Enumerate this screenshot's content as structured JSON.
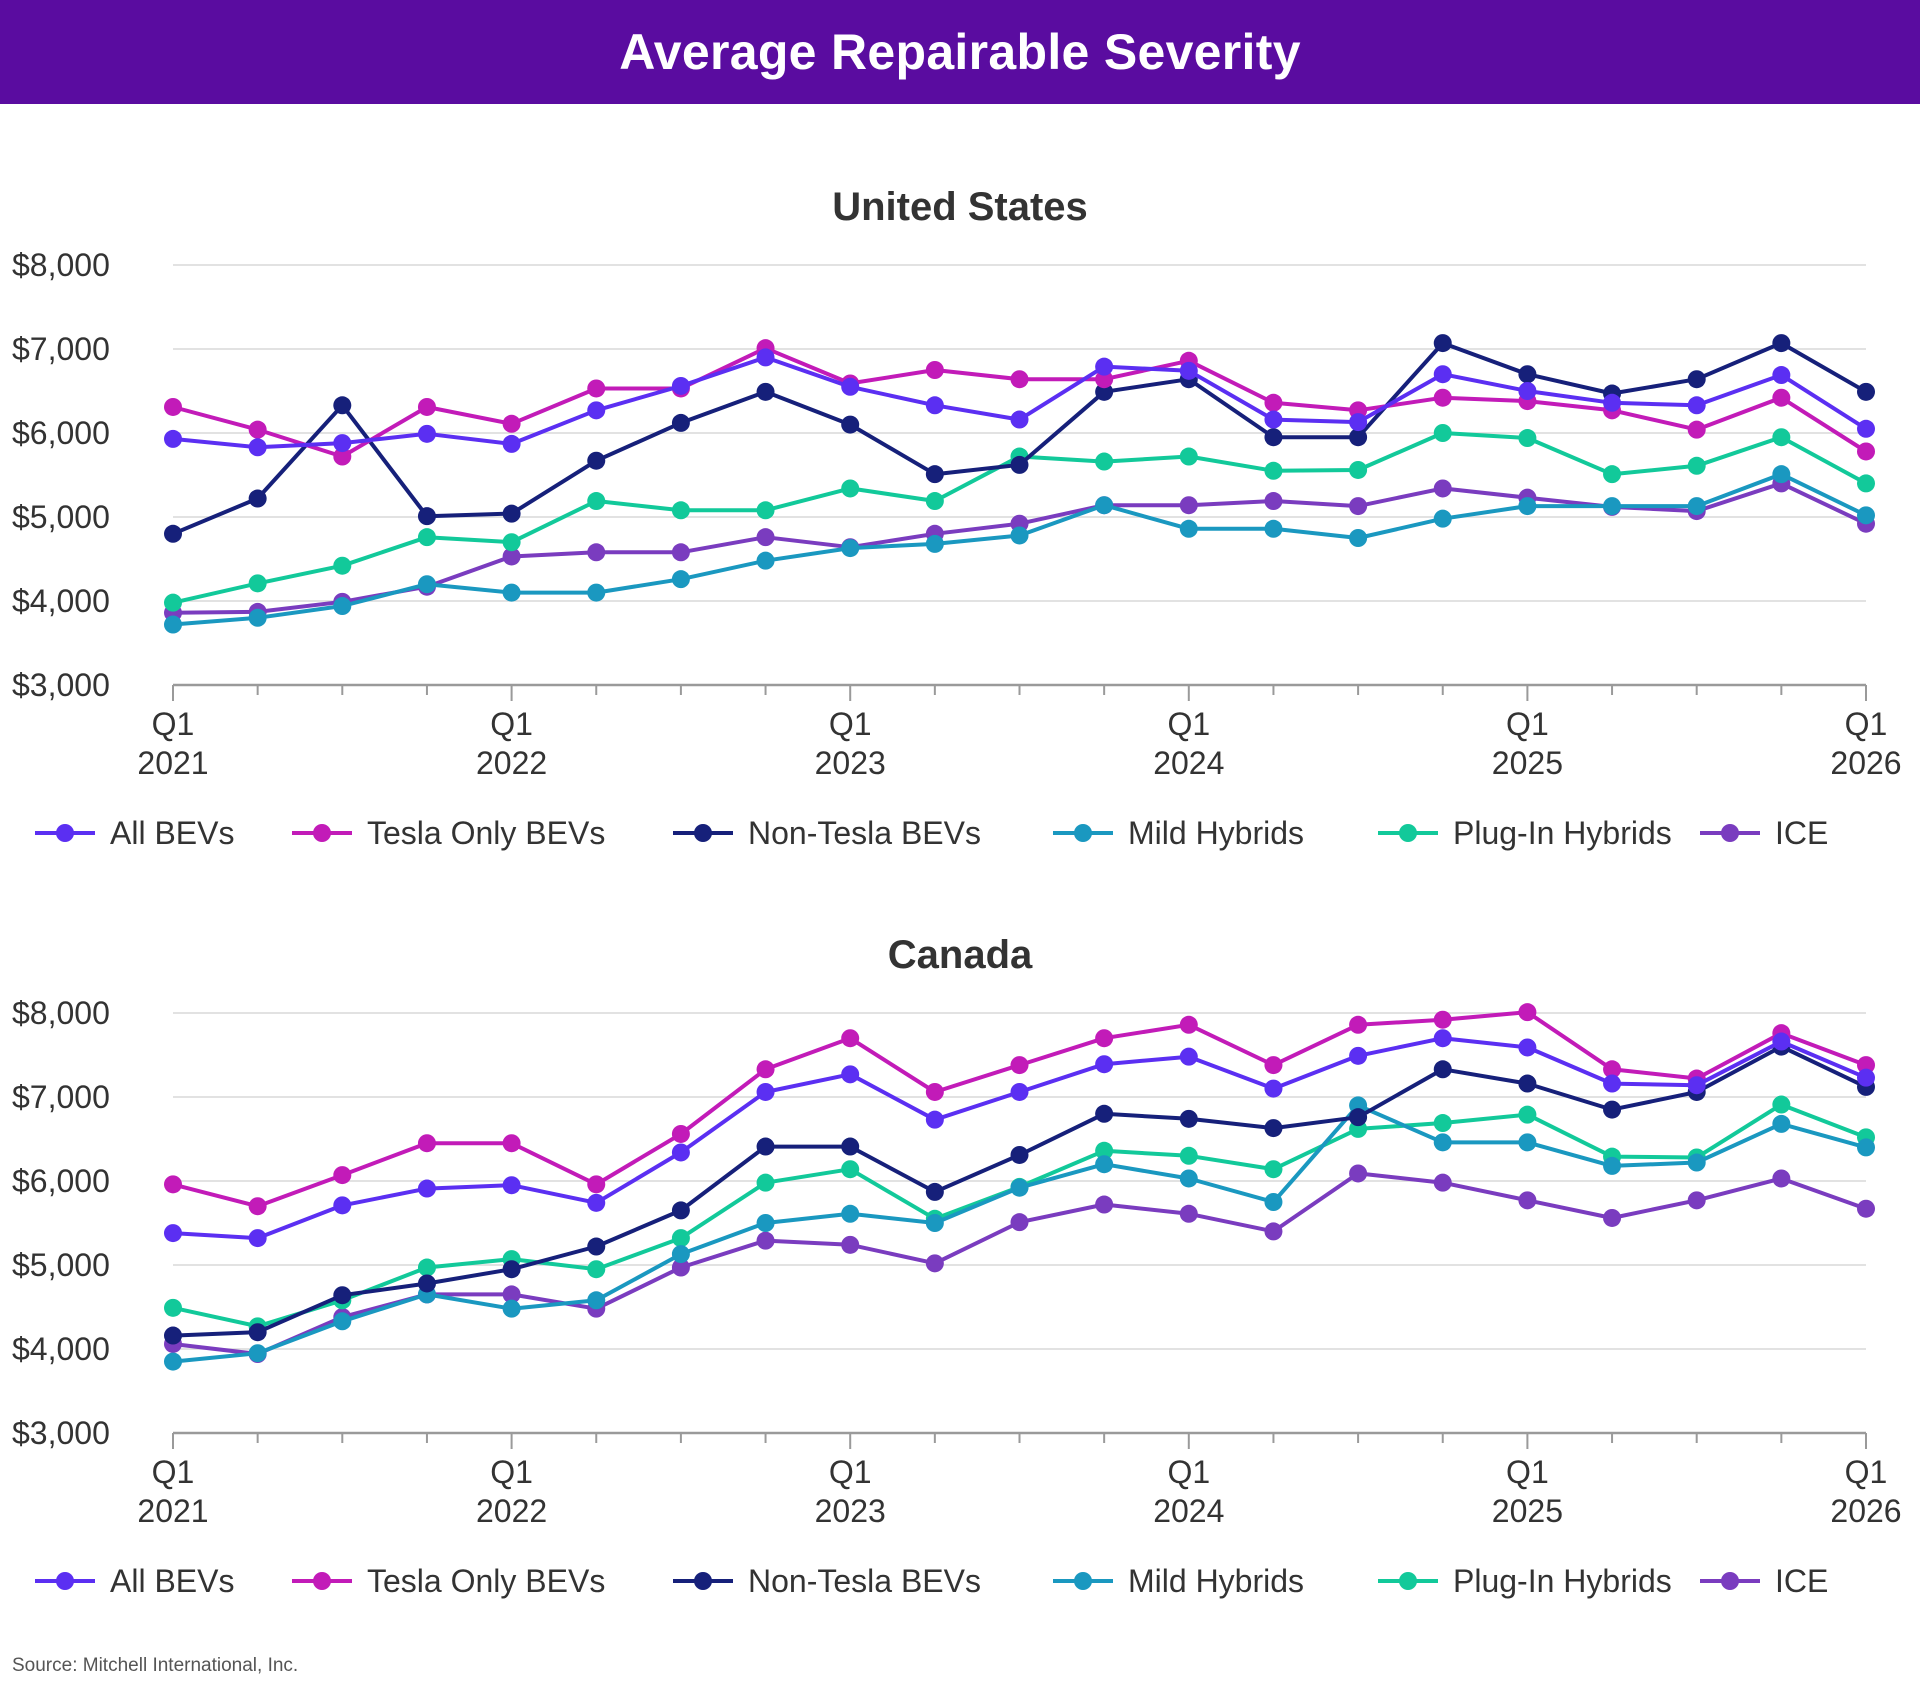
{
  "banner": {
    "title": "Average Repairable Severity"
  },
  "source": "Source: Mitchell International, Inc.",
  "colors": {
    "banner": "#5a0ca0",
    "All BEVs": "#5b2ff2",
    "Tesla Only BEVs": "#c21bb8",
    "Non-Tesla BEVs": "#16207a",
    "Mild Hybrids": "#1a98c0",
    "Plug-In Hybrids": "#12c99a",
    "ICE": "#7a3cbf"
  },
  "chart_data": [
    {
      "type": "line",
      "title": "United States",
      "ylim": [
        3000,
        8000
      ],
      "yticks": [
        "$3,000",
        "$4,000",
        "$5,000",
        "$6,000",
        "$7,000",
        "$8,000"
      ],
      "xticks": [
        {
          "q": "Q1",
          "y": "2021"
        },
        {
          "q": "Q1",
          "y": "2022"
        },
        {
          "q": "Q1",
          "y": "2023"
        },
        {
          "q": "Q1",
          "y": "2024"
        },
        {
          "q": "Q1",
          "y": "2025"
        },
        {
          "q": "Q1",
          "y": "2026"
        }
      ],
      "grid": true,
      "legend": "bottom",
      "series": [
        {
          "name": "All BEVs",
          "values": [
            5930,
            5830,
            5880,
            5990,
            5870,
            6270,
            6560,
            6900,
            6550,
            6330,
            6160,
            6790,
            6740,
            6160,
            6130,
            6700,
            6500,
            6360,
            6330,
            6690,
            6050
          ]
        },
        {
          "name": "Tesla Only BEVs",
          "values": [
            6310,
            6040,
            5720,
            6310,
            6110,
            6530,
            6530,
            7010,
            6590,
            6750,
            6640,
            6640,
            6860,
            6360,
            6270,
            6420,
            6380,
            6270,
            6040,
            6420,
            5780
          ]
        },
        {
          "name": "Non-Tesla BEVs",
          "values": [
            4800,
            5220,
            6330,
            5010,
            5040,
            5670,
            6120,
            6490,
            6100,
            5510,
            5620,
            6490,
            6640,
            5950,
            5950,
            7070,
            6700,
            6470,
            6640,
            7070,
            6490
          ]
        },
        {
          "name": "Mild Hybrids",
          "values": [
            3720,
            3800,
            3940,
            4200,
            4100,
            4100,
            4260,
            4480,
            4630,
            4680,
            4780,
            5140,
            4860,
            4860,
            4750,
            4980,
            5130,
            5130,
            5130,
            5510,
            5020
          ]
        },
        {
          "name": "Plug-In Hybrids",
          "values": [
            3980,
            4210,
            4420,
            4760,
            4700,
            5190,
            5080,
            5080,
            5340,
            5190,
            5720,
            5660,
            5720,
            5550,
            5560,
            6000,
            5940,
            5510,
            5610,
            5950,
            5400
          ]
        },
        {
          "name": "ICE",
          "values": [
            3860,
            3870,
            3990,
            4170,
            4530,
            4580,
            4580,
            4760,
            4640,
            4800,
            4920,
            5140,
            5140,
            5190,
            5130,
            5340,
            5230,
            5120,
            5070,
            5400,
            4920
          ]
        }
      ]
    },
    {
      "type": "line",
      "title": "Canada",
      "ylim": [
        3000,
        8000
      ],
      "yticks": [
        "$3,000",
        "$4,000",
        "$5,000",
        "$6,000",
        "$7,000",
        "$8,000"
      ],
      "xticks": [
        {
          "q": "Q1",
          "y": "2021"
        },
        {
          "q": "Q1",
          "y": "2022"
        },
        {
          "q": "Q1",
          "y": "2023"
        },
        {
          "q": "Q1",
          "y": "2024"
        },
        {
          "q": "Q1",
          "y": "2025"
        },
        {
          "q": "Q1",
          "y": "2026"
        }
      ],
      "grid": true,
      "legend": "bottom",
      "series": [
        {
          "name": "All BEVs",
          "values": [
            5380,
            5320,
            5710,
            5910,
            5950,
            5740,
            6340,
            7060,
            7270,
            6730,
            7060,
            7390,
            7480,
            7100,
            7490,
            7700,
            7590,
            7160,
            7140,
            7660,
            7230
          ]
        },
        {
          "name": "Tesla Only BEVs",
          "values": [
            5960,
            5700,
            6070,
            6450,
            6450,
            5960,
            6560,
            7330,
            7700,
            7060,
            7380,
            7700,
            7860,
            7380,
            7860,
            7920,
            8010,
            7330,
            7220,
            7760,
            7380
          ]
        },
        {
          "name": "Non-Tesla BEVs",
          "values": [
            4160,
            4200,
            4640,
            4780,
            4950,
            5220,
            5650,
            6410,
            6410,
            5870,
            6310,
            6800,
            6740,
            6630,
            6760,
            7330,
            7160,
            6850,
            7060,
            7600,
            7120
          ]
        },
        {
          "name": "Mild Hybrids",
          "values": [
            3850,
            3950,
            4330,
            4650,
            4480,
            4580,
            5130,
            5500,
            5610,
            5500,
            5920,
            6200,
            6030,
            5750,
            6900,
            6460,
            6460,
            6180,
            6220,
            6680,
            6400
          ]
        },
        {
          "name": "Plug-In Hybrids",
          "values": [
            4490,
            4270,
            4580,
            4970,
            5070,
            4950,
            5320,
            5980,
            6140,
            5550,
            5930,
            6360,
            6300,
            6140,
            6620,
            6690,
            6790,
            6290,
            6280,
            6910,
            6520
          ]
        },
        {
          "name": "ICE",
          "values": [
            4060,
            3940,
            4380,
            4650,
            4650,
            4480,
            4970,
            5290,
            5240,
            5020,
            5510,
            5720,
            5610,
            5400,
            6090,
            5980,
            5770,
            5560,
            5770,
            6030,
            5670
          ]
        }
      ]
    }
  ]
}
